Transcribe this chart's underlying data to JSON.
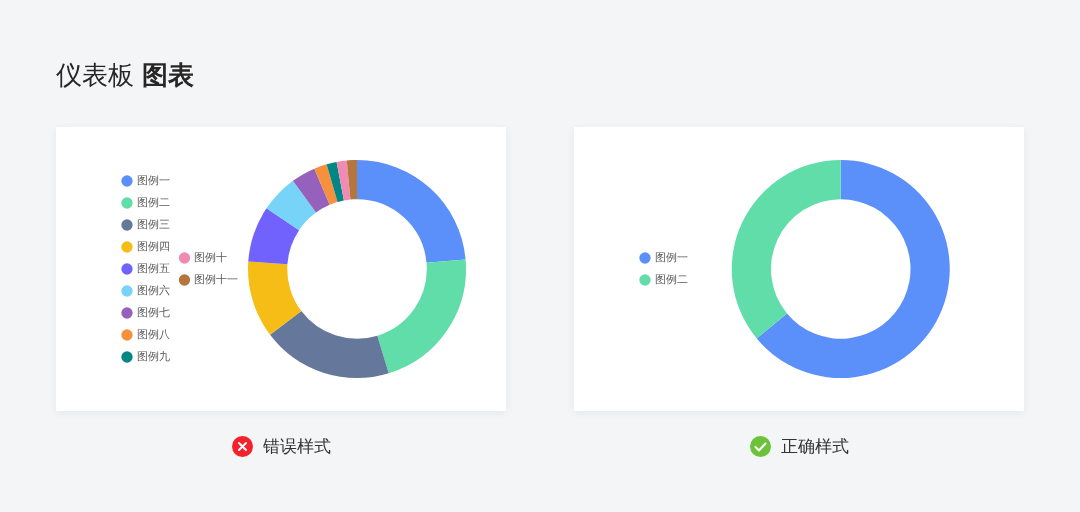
{
  "chart_data": [
    {
      "type": "donut",
      "title": "仪表板 图表",
      "categories": [
        "图例一",
        "图例二",
        "图例三",
        "图例四",
        "图例五",
        "图例六",
        "图例七",
        "图例八",
        "图例九",
        "图例十",
        "图例十一"
      ],
      "values": [
        23.6,
        21.7,
        19.4,
        11.4,
        8.3,
        5.6,
        3.6,
        1.9,
        1.5,
        1.5,
        1.5
      ],
      "colors": [
        "#5b8ff9",
        "#61ddaa",
        "#65789b",
        "#f6bd16",
        "#7262fd",
        "#78d3f8",
        "#9661bc",
        "#f6903d",
        "#008685",
        "#f08bb4",
        "#b5763d"
      ],
      "legend": "left",
      "annotations": [
        "错误样式"
      ]
    },
    {
      "type": "donut",
      "categories": [
        "图例一",
        "图例二"
      ],
      "values": [
        64,
        36
      ],
      "colors": [
        "#5b8ff9",
        "#61ddaa"
      ],
      "legend": "left",
      "annotations": [
        "正确样式"
      ]
    }
  ]
}
